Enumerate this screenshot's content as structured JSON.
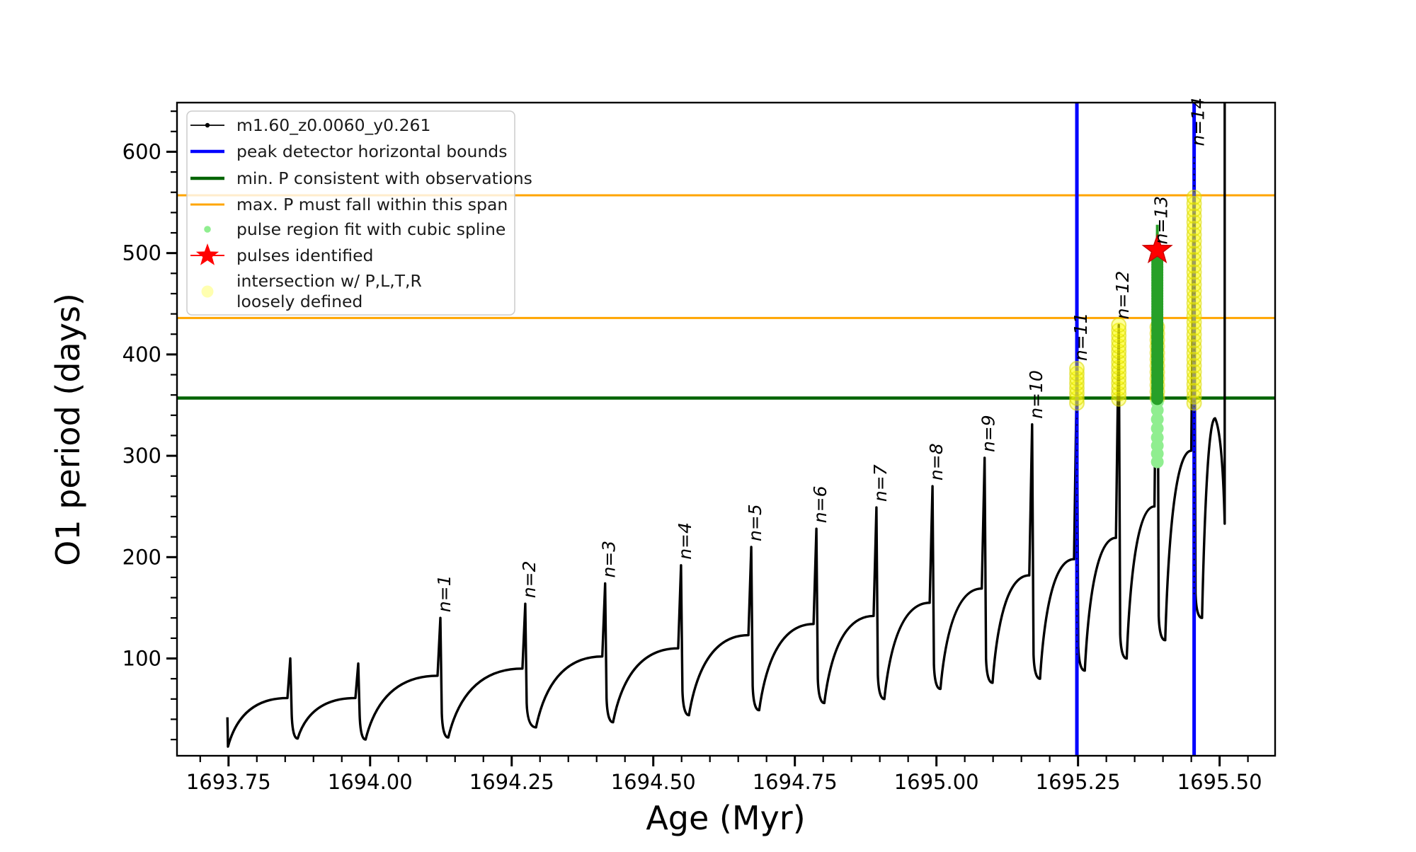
{
  "figure": {
    "xlabel": "Age (Myr)",
    "ylabel": "O1 period (days)"
  },
  "legend": {
    "entries": [
      {
        "label": "m1.60_z0.0060_y0.261",
        "marker": "line-dot",
        "color": "#000000"
      },
      {
        "label": "peak detector horizontal bounds",
        "marker": "line",
        "color": "#0000ff"
      },
      {
        "label": "min. P consistent with observations",
        "marker": "line",
        "color": "#006400"
      },
      {
        "label": "max. P must fall within this span",
        "marker": "line-thin",
        "color": "#ffa500"
      },
      {
        "label": "pulse region fit with cubic spline",
        "marker": "dot",
        "color": "#90ee90"
      },
      {
        "label": "pulses identified",
        "marker": "star-line",
        "color": "#ff0000"
      },
      {
        "label": "intersection w/ P,L,T,R loosely defined",
        "label_lines": [
          "intersection w/ P,L,T,R",
          "loosely defined"
        ],
        "marker": "dot-faint",
        "color": "rgba(255,255,80,0.45)"
      }
    ]
  },
  "chart_data": {
    "type": "line",
    "title": "",
    "xlabel": "Age (Myr)",
    "ylabel": "O1 period (days)",
    "xlim": [
      1693.659,
      1695.598
    ],
    "ylim": [
      4,
      648.5
    ],
    "x_major_ticks": [
      1693.75,
      1694.0,
      1694.25,
      1694.5,
      1694.75,
      1695.0,
      1695.25,
      1695.5
    ],
    "x_tick_labels": [
      "1693.75",
      "1694.00",
      "1694.25",
      "1694.50",
      "1694.75",
      "1695.00",
      "1695.25",
      "1695.50"
    ],
    "x_minor_step": 0.05,
    "y_major_ticks": [
      100,
      200,
      300,
      400,
      500,
      600
    ],
    "y_tick_labels": [
      "100",
      "200",
      "300",
      "400",
      "500",
      "600"
    ],
    "y_minor_step": 20,
    "grid": false,
    "legend_position": "upper-left",
    "series": [
      {
        "name": "m1.60_z0.0060_y0.261",
        "color": "#000000"
      }
    ],
    "hlines": [
      {
        "y": 557,
        "color": "#ffa500",
        "width": 3,
        "role": "max-P-span-upper"
      },
      {
        "y": 436,
        "color": "#ffa500",
        "width": 3,
        "role": "max-P-span-lower"
      },
      {
        "y": 357,
        "color": "#006400",
        "width": 4.5,
        "role": "min-P-consistent"
      }
    ],
    "vlines": [
      {
        "x": 1695.248,
        "color": "#0000ff",
        "width": 5,
        "role": "peak-detector-left-bound"
      },
      {
        "x": 1695.455,
        "color": "#0000ff",
        "width": 5,
        "role": "peak-detector-right-bound"
      }
    ],
    "end_line": {
      "x": 1695.509,
      "from": 233,
      "to": 648.5,
      "color": "#000000"
    },
    "start_stub": {
      "age": 1693.748,
      "from": 42,
      "to": 13
    },
    "pulses": [
      {
        "n": 1,
        "age": 1694.124,
        "peak": 140
      },
      {
        "n": 2,
        "age": 1694.274,
        "peak": 154
      },
      {
        "n": 3,
        "age": 1694.415,
        "peak": 174
      },
      {
        "n": 4,
        "age": 1694.549,
        "peak": 192
      },
      {
        "n": 5,
        "age": 1694.673,
        "peak": 210
      },
      {
        "n": 6,
        "age": 1694.788,
        "peak": 228
      },
      {
        "n": 7,
        "age": 1694.894,
        "peak": 249
      },
      {
        "n": 8,
        "age": 1694.993,
        "peak": 270
      },
      {
        "n": 9,
        "age": 1695.085,
        "peak": 298
      },
      {
        "n": 10,
        "age": 1695.169,
        "peak": 331
      },
      {
        "n": 11,
        "age": 1695.248,
        "peak": 388
      },
      {
        "n": 12,
        "age": 1695.322,
        "peak": 429
      },
      {
        "n": 13,
        "age": 1695.39,
        "peak": 520,
        "label_val": 503
      },
      {
        "n": 14,
        "age": 1695.455,
        "peak": 600
      }
    ],
    "cycles": [
      [
        1693.749,
        13,
        1693.854,
        61,
        1693.859,
        100
      ],
      [
        1693.872,
        21,
        1693.974,
        61,
        1693.979,
        95
      ],
      [
        1693.992,
        20,
        1694.119,
        83,
        1694.124,
        140
      ],
      [
        1694.138,
        22,
        1694.269,
        90,
        1694.274,
        154
      ],
      [
        1694.293,
        32,
        1694.41,
        102,
        1694.415,
        174
      ],
      [
        1694.429,
        37,
        1694.544,
        110,
        1694.549,
        192
      ],
      [
        1694.563,
        44,
        1694.668,
        123,
        1694.673,
        210
      ],
      [
        1694.687,
        49,
        1694.783,
        134,
        1694.788,
        228
      ],
      [
        1694.802,
        56,
        1694.889,
        142,
        1694.894,
        249
      ],
      [
        1694.908,
        60,
        1694.988,
        155,
        1694.993,
        270
      ],
      [
        1695.007,
        70,
        1695.08,
        169,
        1695.085,
        298
      ],
      [
        1695.099,
        76,
        1695.164,
        182,
        1695.169,
        331
      ],
      [
        1695.183,
        80,
        1695.243,
        198,
        1695.248,
        388
      ],
      [
        1695.262,
        88,
        1695.317,
        219,
        1695.322,
        429
      ],
      [
        1695.336,
        100,
        1695.385,
        250,
        1695.39,
        520
      ],
      [
        1695.404,
        118,
        1695.45,
        305,
        1695.455,
        600
      ]
    ],
    "final_segment": {
      "dip": [
        1695.469,
        140
      ],
      "peak": [
        1695.492,
        337
      ],
      "end": [
        1695.509,
        233
      ],
      "rise_to": 648.5
    },
    "clusters": {
      "yellow_intersection": [
        {
          "x": 1695.248,
          "from": 352,
          "to": 386,
          "count": 8,
          "r": 10
        },
        {
          "x": 1695.322,
          "from": 356,
          "to": 429,
          "count": 15,
          "r": 10
        },
        {
          "x": 1695.39,
          "from": 357,
          "to": 427,
          "count": 12,
          "r": 10
        },
        {
          "x": 1695.455,
          "from": 352,
          "to": 555,
          "count": 34,
          "r": 10
        }
      ],
      "yellow_fill": "rgba(255,255,0,0.38)",
      "yellow_edge": "rgba(215,215,0,0.55)",
      "lightgreen_spline_pts": {
        "x": 1695.39,
        "vals": [
          294,
          302,
          310,
          318,
          327,
          336,
          345,
          353
        ],
        "r": 9,
        "color": "#90ee90"
      },
      "green_dense": {
        "x": 1695.39,
        "from": 356,
        "to": 494,
        "count": 54,
        "r": 8.5,
        "color": "#28a028"
      },
      "green_stem": {
        "x": 1695.39,
        "from": 494,
        "to": 528,
        "width": 4,
        "color": "#28a028"
      }
    },
    "star": {
      "age": 1695.39,
      "period": 503,
      "color": "#ff0000",
      "edge": "#cc0000",
      "outer_r": 21,
      "inner_r": 8.5
    }
  }
}
